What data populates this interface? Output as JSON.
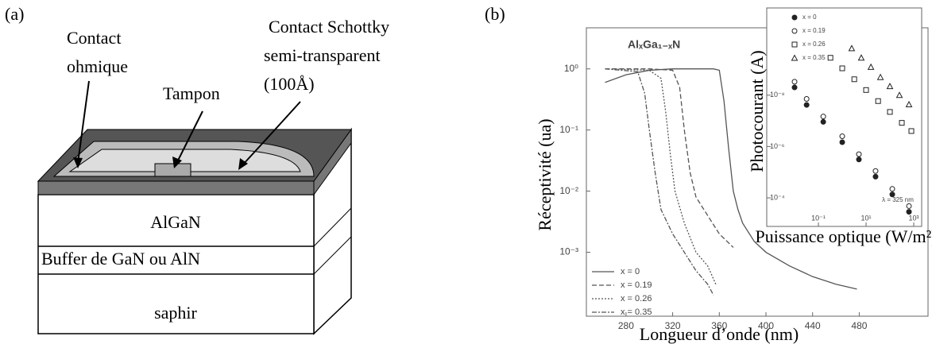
{
  "diagram": {
    "panel_label": "(a)",
    "ohmic_contact": [
      "Contact",
      "ohmique"
    ],
    "buffer_pad": "Tampon",
    "schottky_contact": [
      "Contact Schottky",
      "semi-transparent",
      "(100Å)"
    ],
    "layers": [
      "AlGaN",
      "Buffer de GaN ou AlN",
      "saphir"
    ]
  },
  "chart_panel_label": "(b)",
  "chart_data": [
    {
      "type": "line",
      "title": "AlₓGa₁₋ₓN",
      "x_label": "Longueur d’onde (nm)",
      "y_label": "Réceptivité (ua)",
      "xlim": [
        246,
        539
      ],
      "xticks": [
        280,
        320,
        360,
        400,
        440,
        480
      ],
      "ylim": [
        9e-05,
        4.7
      ],
      "ylog": true,
      "yticks": [
        {
          "value": 1,
          "label": "10⁰"
        },
        {
          "value": 0.1,
          "label": "10⁻¹"
        },
        {
          "value": 0.01,
          "label": "10⁻²"
        },
        {
          "value": 0.001,
          "label": "10⁻³"
        }
      ],
      "legend": "lower left",
      "series": [
        {
          "name": "x = 0",
          "color": "#555555",
          "dash": "solid",
          "x": [
            262,
            280,
            300,
            320,
            340,
            355,
            360,
            364,
            368,
            372,
            376,
            380,
            390,
            400,
            420,
            440,
            460,
            478
          ],
          "values": [
            0.6,
            0.8,
            0.95,
            1,
            1,
            1,
            0.95,
            0.3,
            0.05,
            0.01,
            0.005,
            0.003,
            0.0015,
            0.001,
            0.0006,
            0.0004,
            0.0003,
            0.00025
          ]
        },
        {
          "name": "x = 0.19",
          "color": "#555555",
          "dash": "dashed",
          "x": [
            262,
            300,
            320,
            326,
            330,
            335,
            340,
            350,
            360,
            372
          ],
          "values": [
            1,
            1,
            0.95,
            0.5,
            0.1,
            0.02,
            0.008,
            0.004,
            0.002,
            0.0012
          ]
        },
        {
          "name": "x = 0.26",
          "color": "#555555",
          "dash": "dotted",
          "x": [
            262,
            300,
            310,
            314,
            318,
            322,
            330,
            340,
            350,
            357
          ],
          "values": [
            1,
            0.95,
            0.7,
            0.2,
            0.04,
            0.01,
            0.003,
            0.001,
            0.0006,
            0.0003
          ]
        },
        {
          "name": "x = 0.35",
          "color": "#555555",
          "dash": "dash-dot",
          "x": [
            262,
            290,
            296,
            300,
            305,
            310,
            320,
            330,
            340,
            350,
            355
          ],
          "values": [
            1,
            0.9,
            0.4,
            0.1,
            0.02,
            0.005,
            0.002,
            0.001,
            0.0005,
            0.0003,
            0.0002
          ]
        }
      ]
    },
    {
      "type": "scatter",
      "x_label": "Puissance optique (W/m²)",
      "y_label": "Photocourant (A)",
      "annotation": "λ = 325 nm",
      "xlog": true,
      "ylog": true,
      "xlim": [
        0.00068,
        2150
      ],
      "ylim": [
        0.0013,
        4e-12
      ],
      "xticks": [
        {
          "value": 0.1,
          "label": "10⁻¹"
        },
        {
          "value": 10,
          "label": "10¹"
        },
        {
          "value": 1000,
          "label": "10³"
        }
      ],
      "yticks": [
        {
          "value": 0.0001,
          "label": "10⁻⁴"
        },
        {
          "value": 1e-06,
          "label": "10⁻⁶"
        },
        {
          "value": 1e-08,
          "label": "10⁻⁸"
        }
      ],
      "legend": "upper left",
      "series": [
        {
          "name": "x = 0",
          "color": "#222222",
          "marker": "filled-circle",
          "x": [
            0.01,
            0.032,
            0.16,
            1,
            5,
            25,
            126,
            631
          ],
          "values": [
            5e-09,
            2.4e-08,
            1.1e-07,
            6.8e-07,
            3.2e-06,
            1.5e-05,
            7.4e-05,
            0.00035
          ]
        },
        {
          "name": "x = 0.19",
          "color": "#222222",
          "marker": "circle",
          "x": [
            0.01,
            0.032,
            0.16,
            1,
            5,
            25,
            126,
            631
          ],
          "values": [
            3e-09,
            1.4e-08,
            6.8e-08,
            4e-07,
            2e-06,
            9e-06,
            4.5e-05,
            0.00021
          ]
        },
        {
          "name": "x = 0.26",
          "color": "#222222",
          "marker": "square",
          "x": [
            0.32,
            1,
            3.2,
            10,
            32,
            100,
            316,
            794
          ],
          "values": [
            3.5e-10,
            9e-10,
            2.4e-09,
            6.3e-09,
            1.7e-08,
            4.5e-08,
            1.2e-07,
            2.5e-07
          ]
        },
        {
          "name": "x = 0.35",
          "color": "#222222",
          "marker": "triangle",
          "x": [
            2.5,
            6.3,
            16,
            40,
            100,
            251,
            631
          ],
          "values": [
            1.5e-10,
            3.5e-10,
            8e-10,
            2e-09,
            4.5e-09,
            1e-08,
            2.3e-08
          ]
        }
      ]
    }
  ]
}
